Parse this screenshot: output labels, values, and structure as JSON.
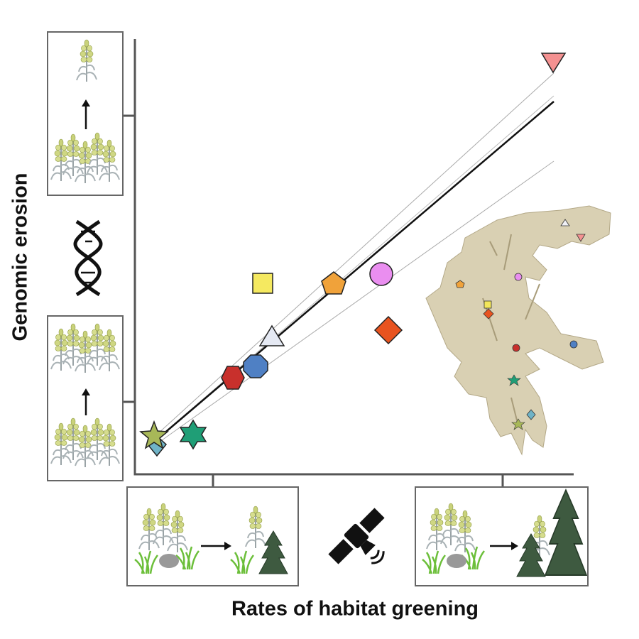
{
  "axis_labels": {
    "y": "Genomic erosion",
    "x": "Rates of habitat greening"
  }
}
